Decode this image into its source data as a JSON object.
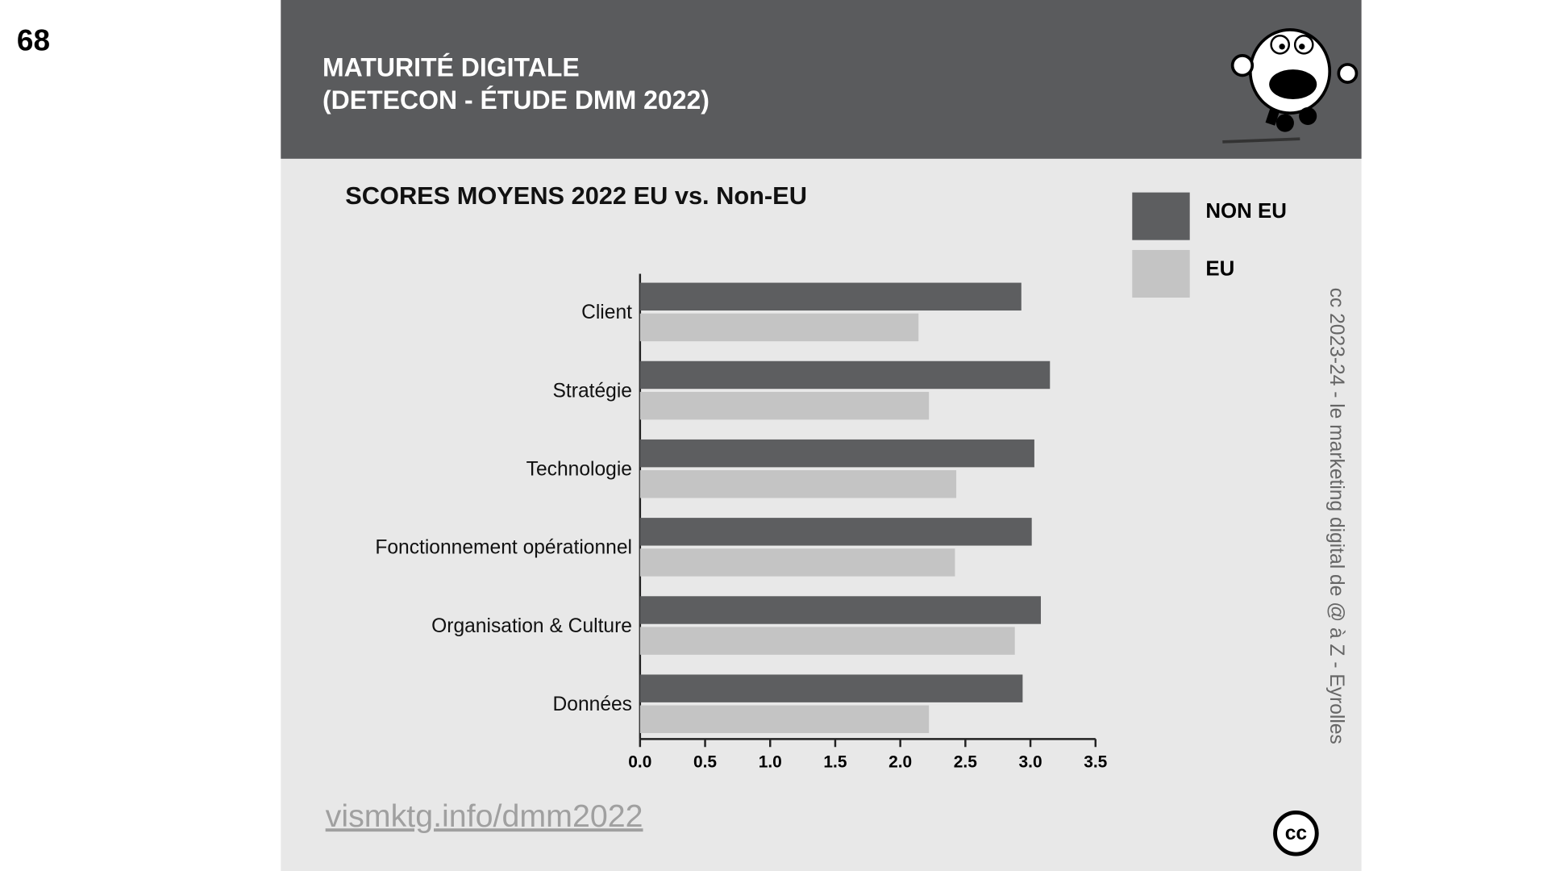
{
  "page_number": "68",
  "header": {
    "title_lines": [
      "MATURITÉ DIGITALE",
      "(DETECON - ÉTUDE DMM 2022)"
    ]
  },
  "footer": {
    "link": "vismktg.info/dmm2022",
    "credit": "cc 2023-24  - le marketing digital de @ à Z - Eyrolles",
    "license": "cc"
  },
  "chart_data": {
    "type": "bar",
    "orientation": "horizontal",
    "title": "SCORES MOYENS 2022 EU vs. Non-EU",
    "categories": [
      "Client",
      "Stratégie",
      "Technologie",
      "Fonctionnement opérationnel",
      "Organisation & Culture",
      "Données"
    ],
    "series": [
      {
        "name": "NON EU",
        "color": "#5d5e60",
        "values": [
          2.93,
          3.15,
          3.03,
          3.01,
          3.08,
          2.94
        ]
      },
      {
        "name": "EU",
        "color": "#c4c4c4",
        "values": [
          2.14,
          2.22,
          2.43,
          2.42,
          2.88,
          2.22
        ]
      }
    ],
    "xlim": [
      0,
      3.5
    ],
    "xticks": [
      {
        "value": 0,
        "label": "0.0"
      },
      0.5,
      {
        "value": 1,
        "label": "1.0"
      },
      1.5,
      {
        "value": 2,
        "label": "2.0"
      },
      2.5,
      {
        "value": 3,
        "label": "3.0"
      },
      3.5
    ],
    "legend": "top-right",
    "grid": false
  }
}
